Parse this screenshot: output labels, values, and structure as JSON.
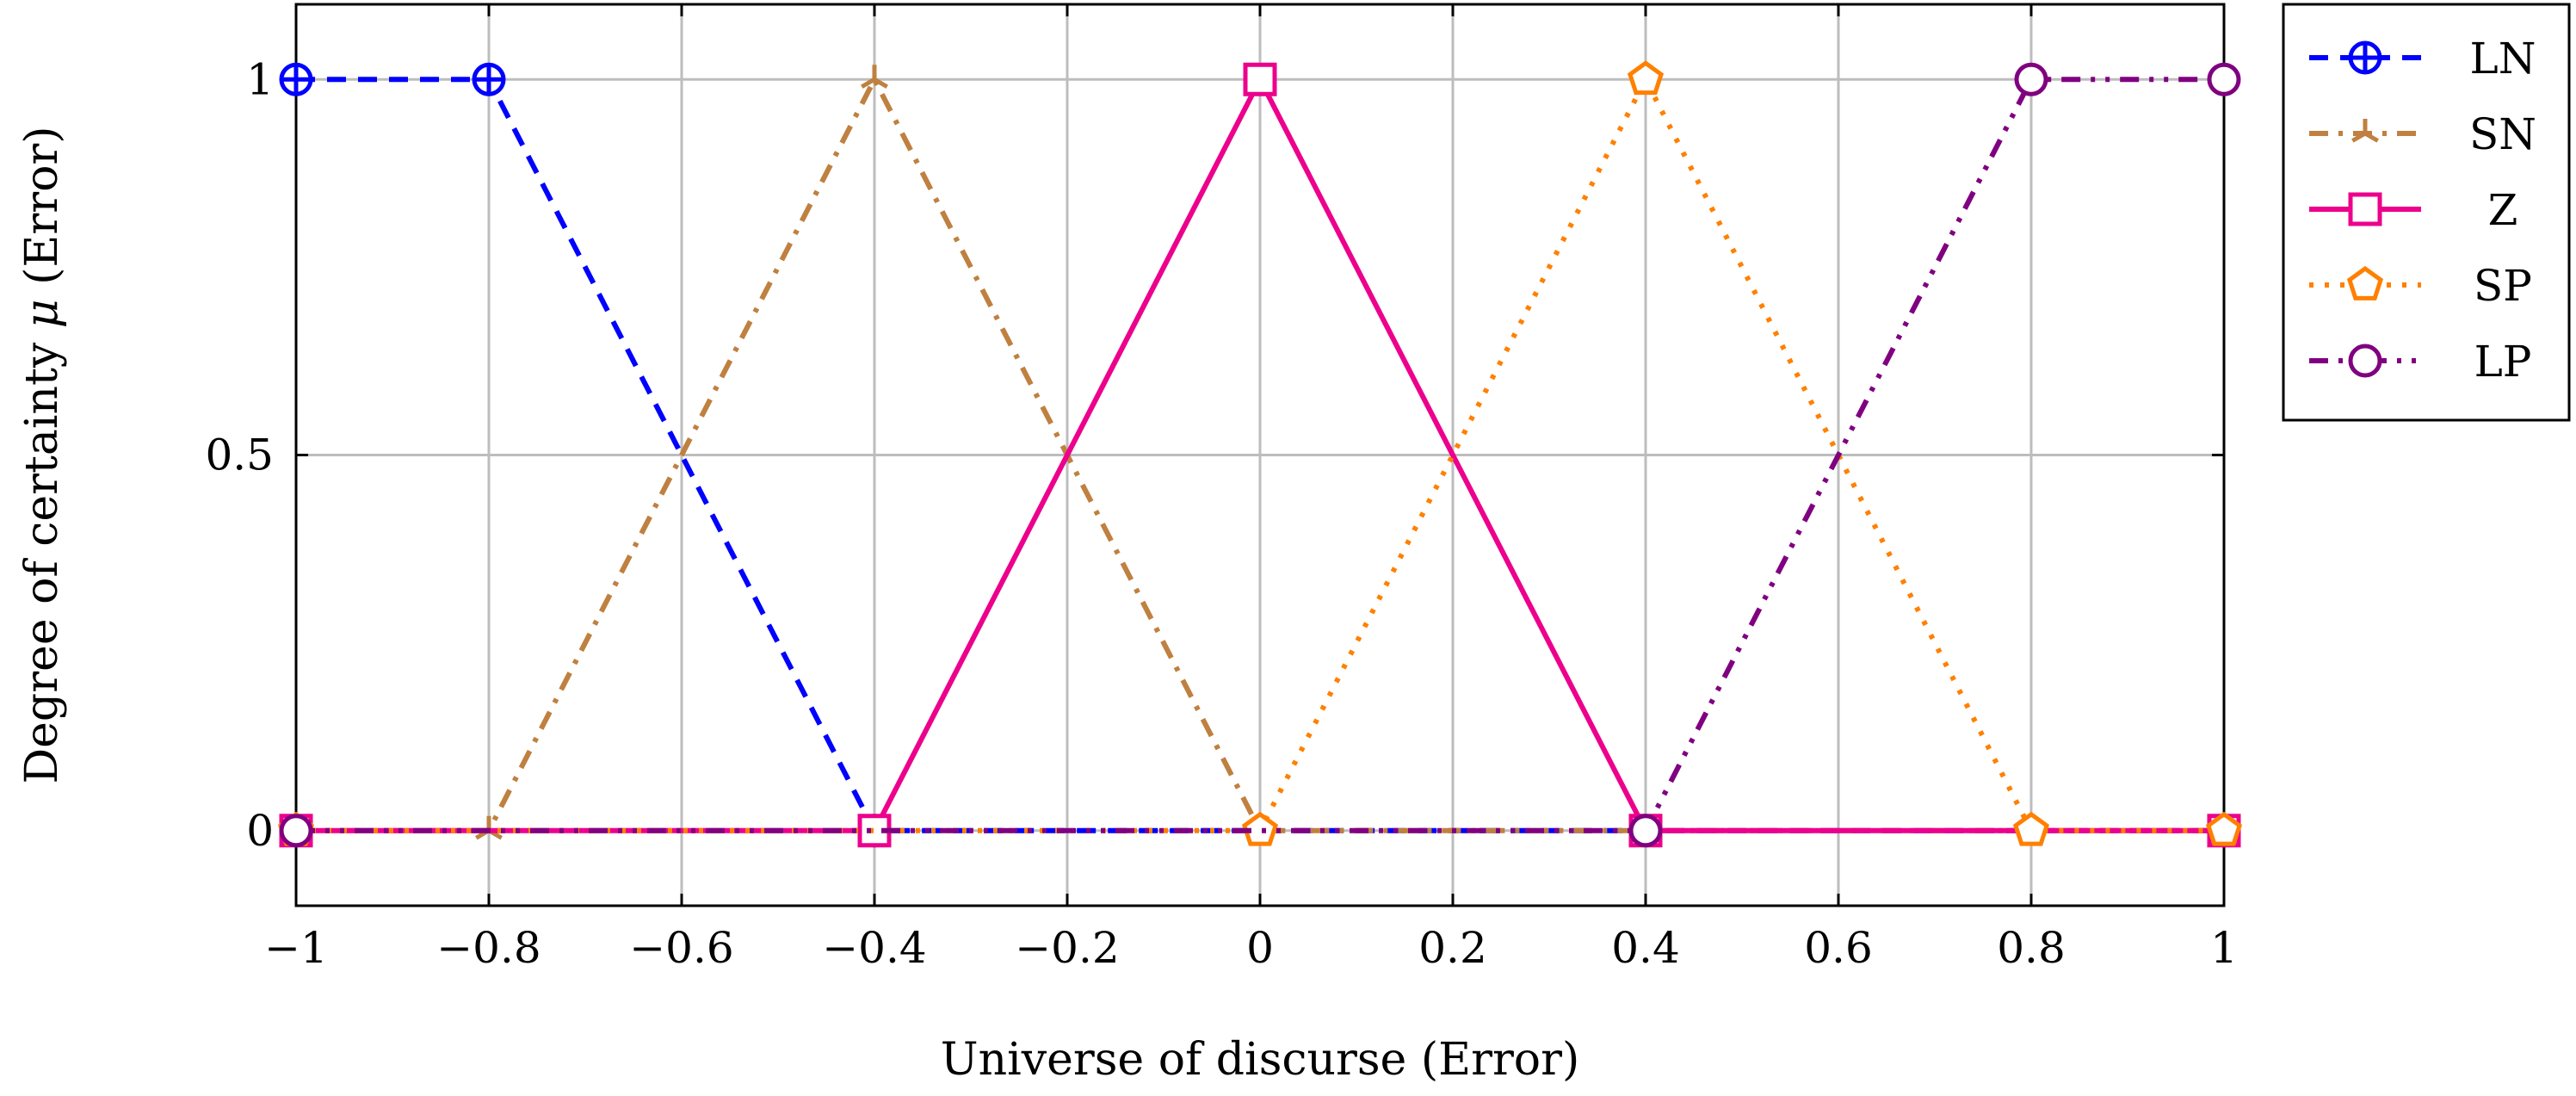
{
  "chart_data": {
    "type": "line",
    "xlabel": "Universe of discurse (Error)",
    "ylabel_prefix": "Degree of certainty ",
    "ylabel_symbol": "μ",
    "ylabel_suffix": " (Error)",
    "xlim": [
      -1,
      1
    ],
    "ylim": [
      -0.1,
      1.1
    ],
    "x_ticks": [
      -1,
      -0.8,
      -0.6,
      -0.4,
      -0.2,
      0,
      0.2,
      0.4,
      0.6,
      0.8,
      1
    ],
    "x_tick_labels": [
      "−1",
      "−0.8",
      "−0.6",
      "−0.4",
      "−0.2",
      "0",
      "0.2",
      "0.4",
      "0.6",
      "0.8",
      "1"
    ],
    "y_ticks": [
      0,
      0.5,
      1
    ],
    "y_tick_labels": [
      "0",
      "0.5",
      "1"
    ],
    "grid": true,
    "legend_position": "outside-top-right",
    "series": [
      {
        "name": "LN",
        "color": "#0000ff",
        "dash": "dashed",
        "marker": "circle-plus",
        "x": [
          -1,
          -0.8,
          -0.4,
          1
        ],
        "y": [
          1,
          1,
          0,
          0
        ]
      },
      {
        "name": "SN",
        "color": "#bf8040",
        "dash": "dash-dot",
        "marker": "tri-star",
        "x": [
          -1,
          -0.8,
          -0.4,
          0,
          1
        ],
        "y": [
          0,
          0,
          1,
          0,
          0
        ]
      },
      {
        "name": "Z",
        "color": "#ec008c",
        "dash": "solid",
        "marker": "square",
        "x": [
          -1,
          -0.4,
          0,
          0.4,
          1
        ],
        "y": [
          0,
          0,
          1,
          0,
          0
        ]
      },
      {
        "name": "SP",
        "color": "#ff8000",
        "dash": "dotted",
        "marker": "pentagon",
        "x": [
          -1,
          0,
          0.4,
          0.8,
          1
        ],
        "y": [
          0,
          0,
          1,
          0,
          0
        ]
      },
      {
        "name": "LP",
        "color": "#800080",
        "dash": "dash-dot-dot",
        "marker": "circle",
        "x": [
          -1,
          0.4,
          0.8,
          1
        ],
        "y": [
          0,
          0,
          1,
          1
        ]
      }
    ]
  }
}
